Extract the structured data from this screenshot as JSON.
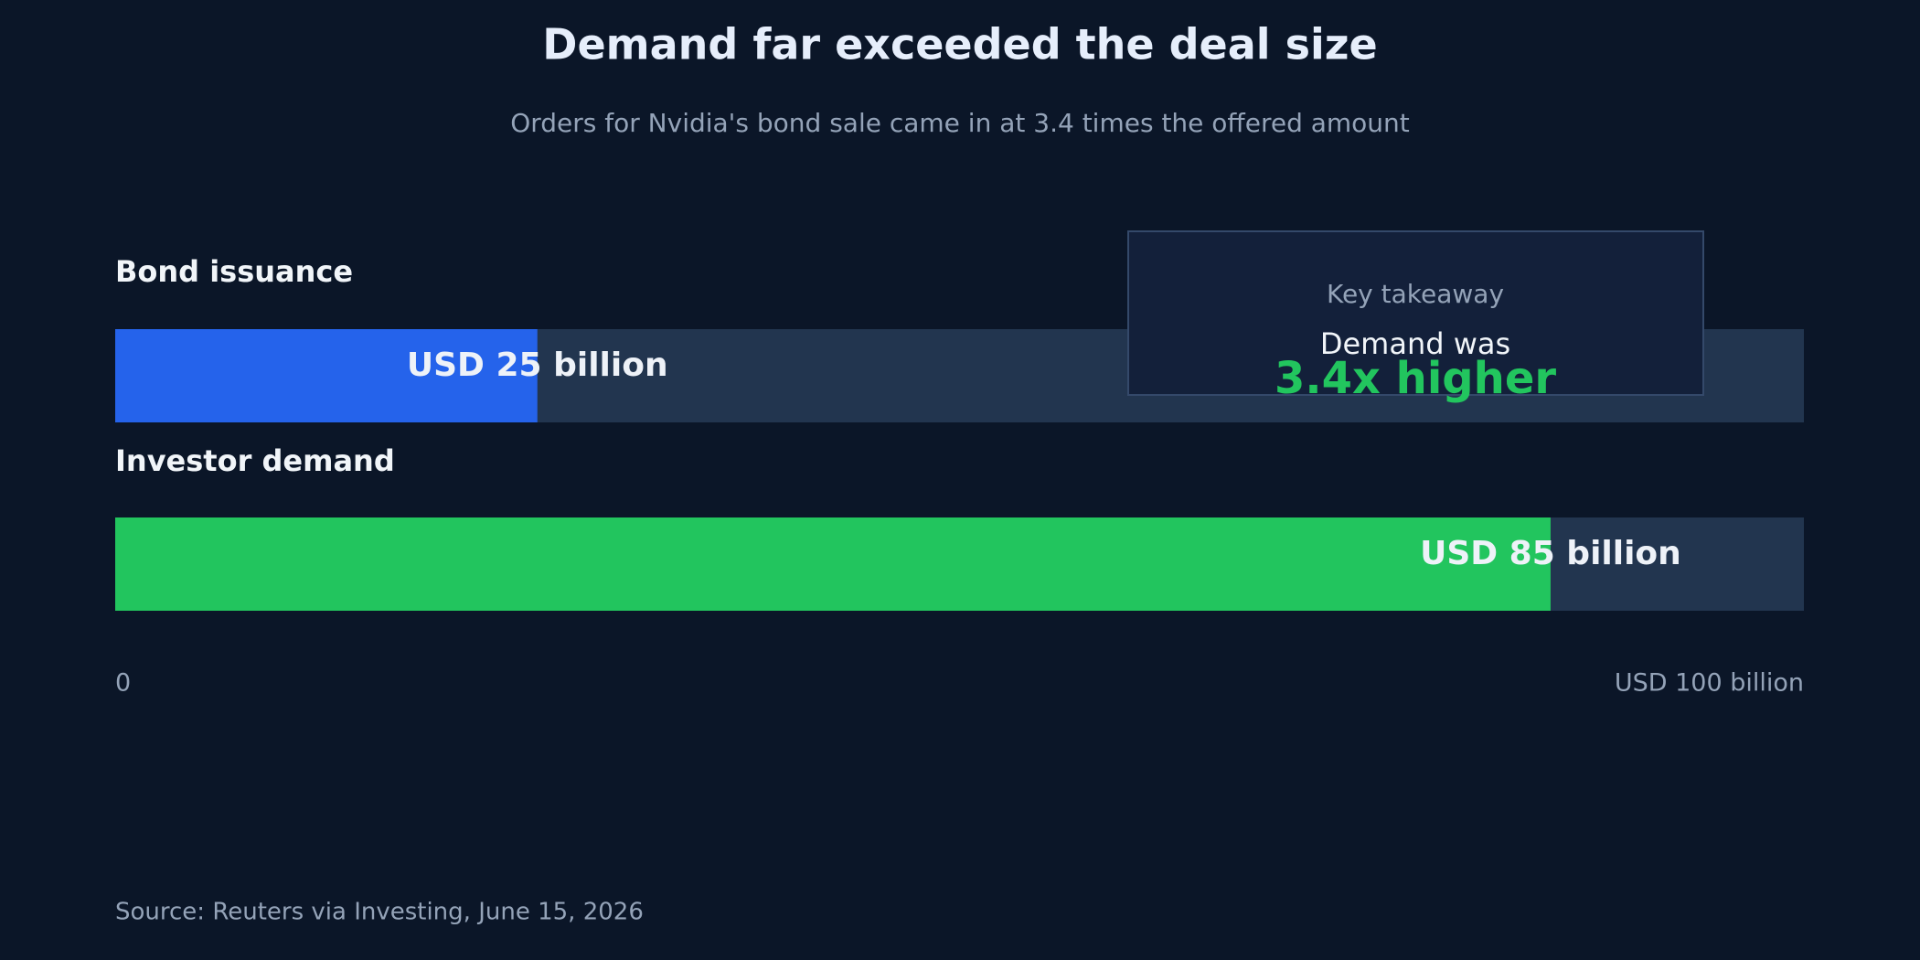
{
  "chart_data": {
    "type": "bar",
    "orientation": "horizontal",
    "title": "Demand far exceeded the deal size",
    "subtitle": "Orders for Nvidia's bond sale came in at 3.4 times the offered amount",
    "categories": [
      "Bond issuance",
      "Investor demand"
    ],
    "values": [
      25,
      85
    ],
    "value_labels": [
      "USD 25 billion",
      "USD 85 billion"
    ],
    "colors": [
      "#2563eb",
      "#22c55e"
    ],
    "xlim": [
      0,
      100
    ],
    "xticks": [
      0,
      {
        "value": 100,
        "label": "USD 100 billion"
      }
    ],
    "annotation": {
      "title": "Key takeaway",
      "text": "Demand was",
      "highlight": "3.4x higher"
    },
    "source": "Source: Reuters via Investing, June 15, 2026"
  }
}
